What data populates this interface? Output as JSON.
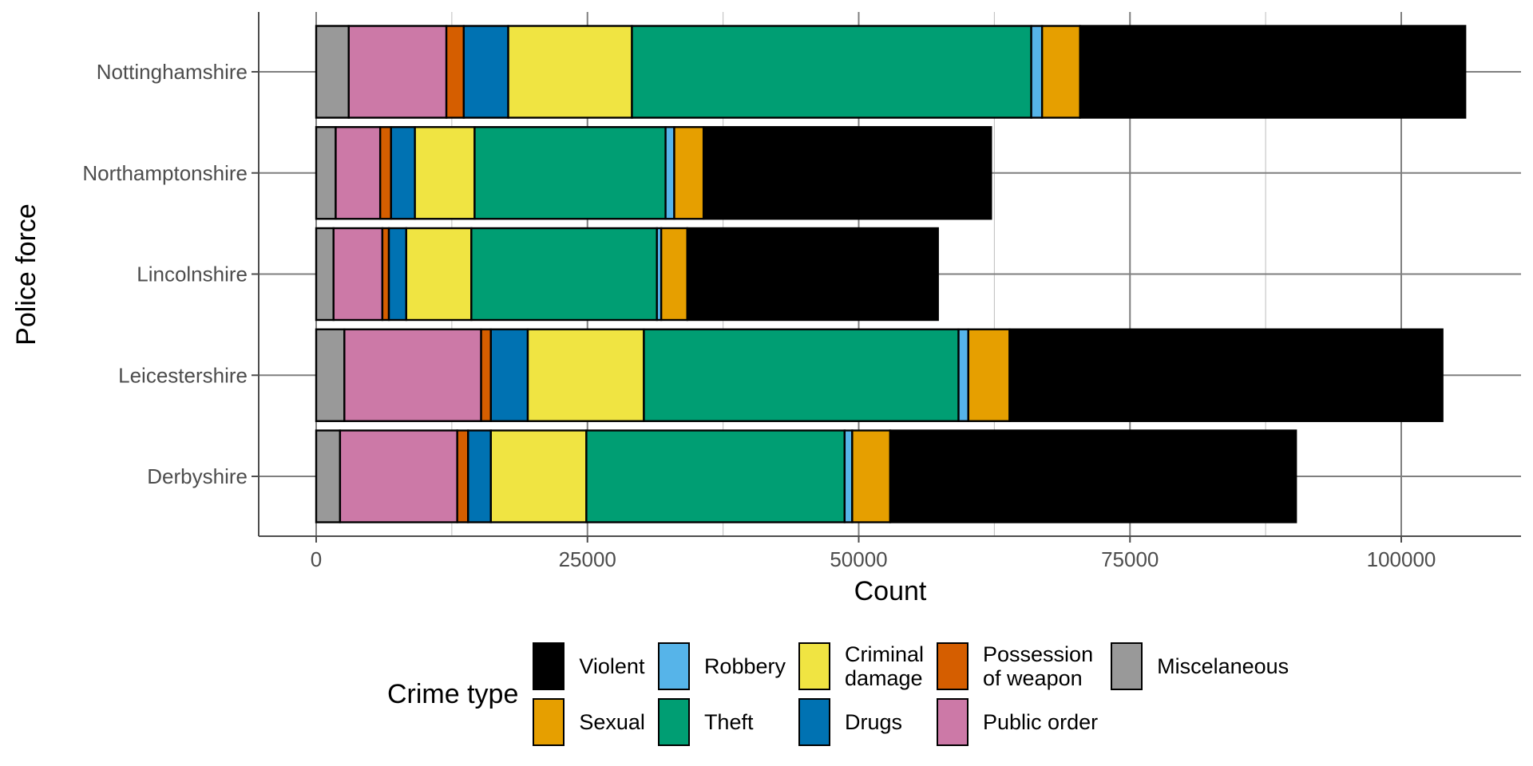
{
  "chart_data": {
    "type": "bar",
    "orientation": "horizontal",
    "stacked": true,
    "title": "",
    "xlabel": "Count",
    "ylabel": "Police force",
    "xlim": [
      0,
      115000
    ],
    "x_ticks": [
      0,
      25000,
      50000,
      75000,
      100000
    ],
    "x_tick_labels": [
      "0",
      "25000",
      "50000",
      "75000",
      "100000"
    ],
    "grid": true,
    "legend_title": "Crime type",
    "legend_position": "bottom",
    "categories": [
      "Nottinghamshire",
      "Northamptonshire",
      "Lincolnshire",
      "Leicestershire",
      "Derbyshire"
    ],
    "series": [
      {
        "name": "Miscelaneous",
        "color": "#999999",
        "values": [
          3000,
          1800,
          1600,
          2600,
          2200
        ]
      },
      {
        "name": "Public order",
        "color": "#CC79A7",
        "values": [
          9000,
          4100,
          4500,
          12600,
          10800
        ]
      },
      {
        "name": "Possession of weapon",
        "color": "#D55E00",
        "values": [
          1600,
          1000,
          600,
          900,
          1000
        ]
      },
      {
        "name": "Drugs",
        "color": "#0072B2",
        "values": [
          4100,
          2200,
          1600,
          3400,
          2100
        ]
      },
      {
        "name": "Criminal damage",
        "color": "#F0E442",
        "values": [
          11400,
          5500,
          6000,
          10700,
          8800
        ]
      },
      {
        "name": "Theft",
        "color": "#009E73",
        "values": [
          36800,
          17600,
          17100,
          29000,
          23800
        ]
      },
      {
        "name": "Robbery",
        "color": "#56B4E9",
        "values": [
          1000,
          800,
          400,
          900,
          700
        ]
      },
      {
        "name": "Sexual",
        "color": "#E69F00",
        "values": [
          3500,
          2700,
          2400,
          3800,
          3500
        ]
      },
      {
        "name": "Violent",
        "color": "#000000",
        "values": [
          35500,
          26500,
          23100,
          39900,
          37400
        ]
      }
    ]
  },
  "legend_items": [
    {
      "label": "Violent",
      "color": "#000000"
    },
    {
      "label": "Sexual",
      "color": "#E69F00"
    },
    {
      "label": "Robbery",
      "color": "#56B4E9"
    },
    {
      "label": "Theft",
      "color": "#009E73"
    },
    {
      "label": "Criminal\ndamage",
      "color": "#F0E442"
    },
    {
      "label": "Drugs",
      "color": "#0072B2"
    },
    {
      "label": "Possession\nof weapon",
      "color": "#D55E00"
    },
    {
      "label": "Public order",
      "color": "#CC79A7"
    },
    {
      "label": "Miscelaneous",
      "color": "#999999"
    }
  ]
}
